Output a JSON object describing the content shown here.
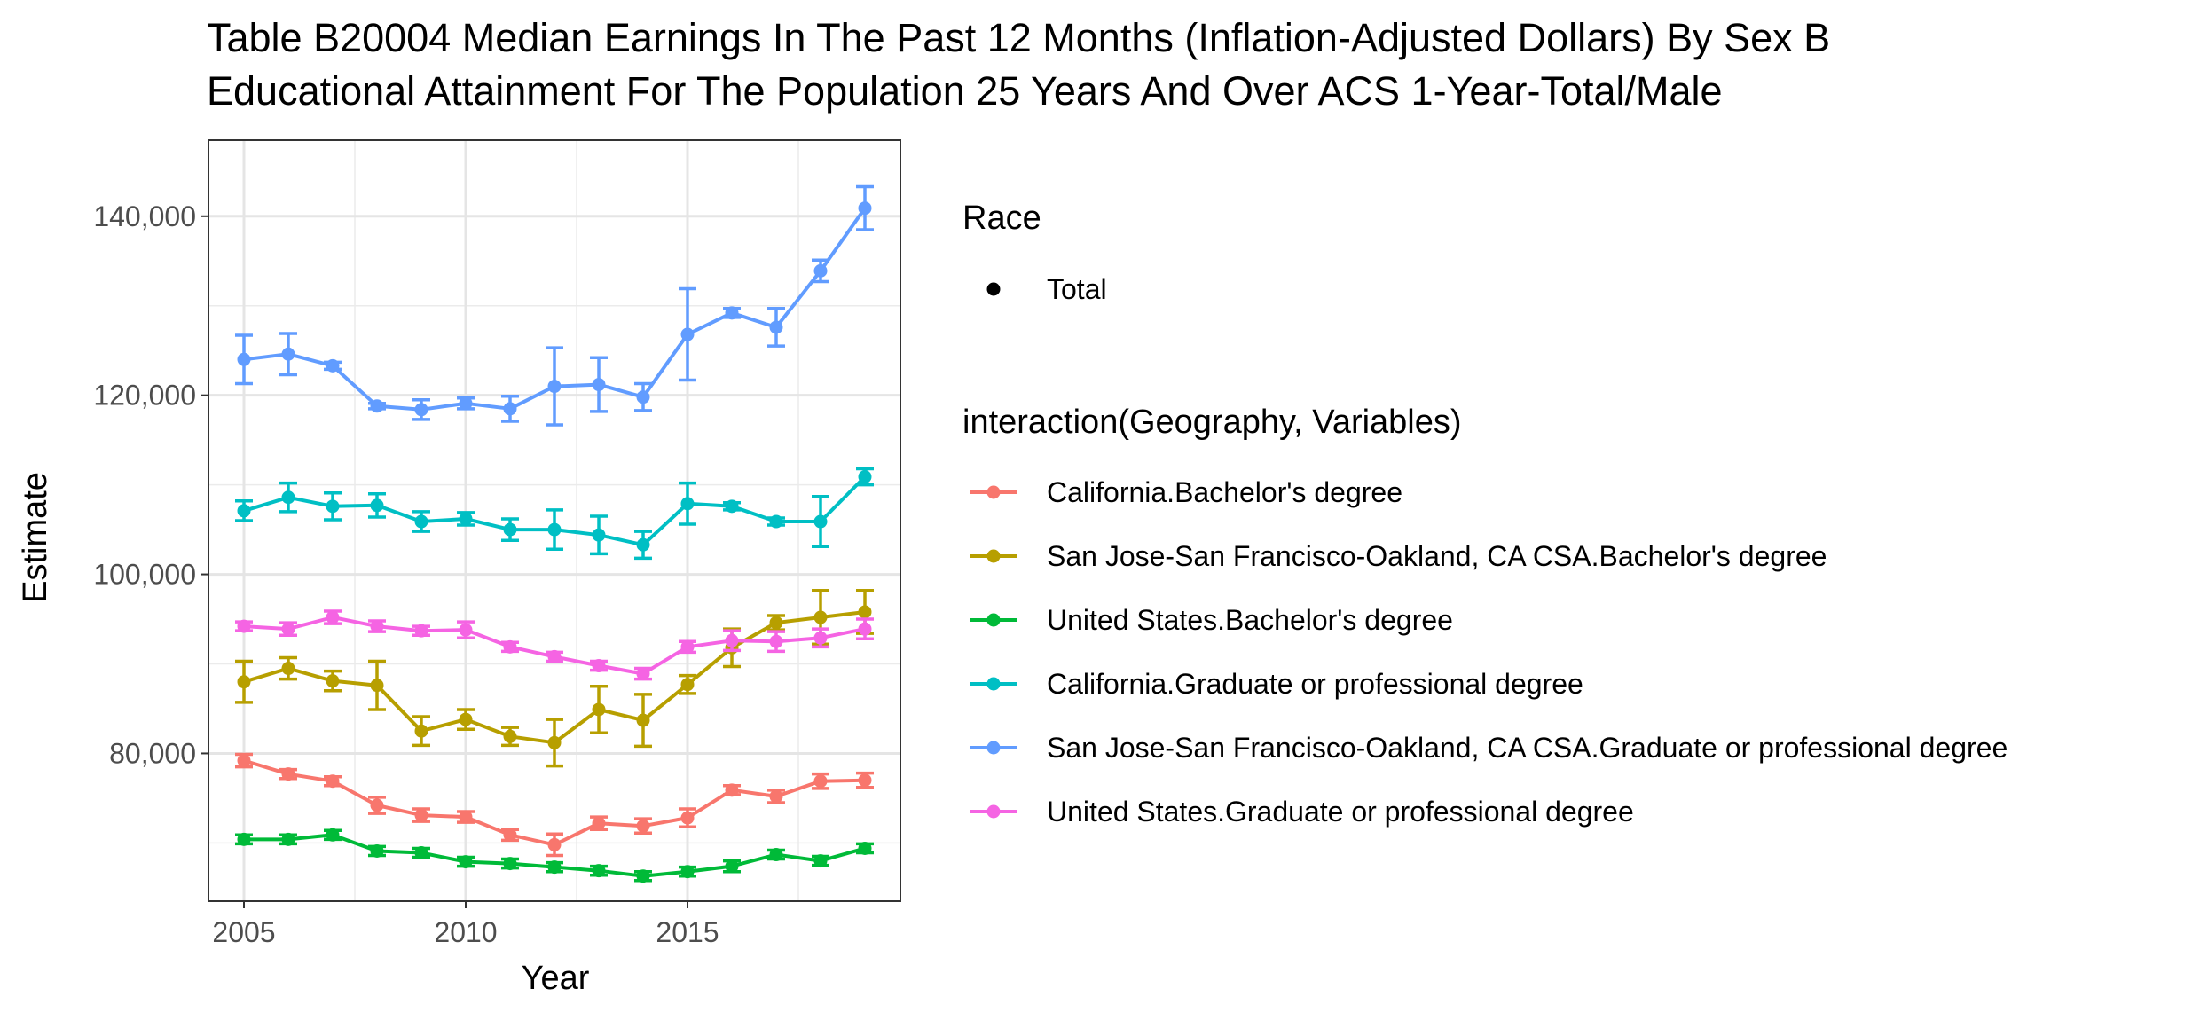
{
  "chart_data": {
    "type": "line",
    "title_line1": "Table B20004 Median Earnings In The Past 12 Months (Inflation-Adjusted Dollars) By Sex B",
    "title_line2": "Educational Attainment For The Population 25 Years And Over ACS 1-Year-Total/Male",
    "xlabel": "Year",
    "ylabel": "Estimate",
    "xlim": [
      2004.2,
      2019.8
    ],
    "ylim": [
      63500,
      148500
    ],
    "x_ticks": [
      2005,
      2010,
      2015
    ],
    "y_ticks": [
      80000,
      100000,
      120000,
      140000
    ],
    "y_tick_labels": [
      "80,000",
      "100,000",
      "120,000",
      "140,000"
    ],
    "grid": true,
    "legend_position": "right",
    "shape_legend": {
      "title": "Race",
      "items": [
        "Total"
      ]
    },
    "color_legend_title": "interaction(Geography, Variables)",
    "x": [
      2005,
      2006,
      2007,
      2008,
      2009,
      2010,
      2011,
      2012,
      2013,
      2014,
      2015,
      2016,
      2017,
      2018,
      2019
    ],
    "series": [
      {
        "name": "California.Bachelor's degree",
        "color": "#F8766D",
        "values": [
          79200,
          77700,
          76900,
          74200,
          73100,
          72900,
          70900,
          69800,
          72200,
          71900,
          72800,
          75900,
          75200,
          76900,
          77000
        ],
        "lower": [
          78500,
          77200,
          76400,
          73300,
          72400,
          72300,
          70300,
          68600,
          71500,
          71100,
          71800,
          75400,
          74500,
          76100,
          76200
        ],
        "upper": [
          79900,
          78200,
          77400,
          75100,
          73800,
          73500,
          71500,
          71000,
          72900,
          72700,
          73800,
          76400,
          75900,
          77700,
          77800
        ]
      },
      {
        "name": "San Jose-San Francisco-Oakland, CA CSA.Bachelor's degree",
        "color": "#B79F00",
        "values": [
          88000,
          89500,
          88100,
          87600,
          82500,
          83800,
          81900,
          81200,
          84900,
          83700,
          87700,
          91800,
          94600,
          95200,
          95800
        ],
        "lower": [
          85700,
          88300,
          87000,
          84900,
          80900,
          82700,
          80900,
          78600,
          82300,
          80800,
          86700,
          89700,
          93800,
          92200,
          93400
        ],
        "upper": [
          90300,
          90700,
          89200,
          90300,
          84100,
          84900,
          82900,
          83800,
          87500,
          86600,
          88700,
          93900,
          95400,
          98200,
          98200
        ]
      },
      {
        "name": "United States.Bachelor's degree",
        "color": "#00BA38",
        "values": [
          70400,
          70400,
          70900,
          69100,
          68900,
          67900,
          67700,
          67300,
          66900,
          66300,
          66800,
          67400,
          68700,
          68000,
          69400
        ],
        "lower": [
          69900,
          69900,
          70400,
          68600,
          68400,
          67400,
          67200,
          66800,
          66400,
          65800,
          66300,
          66800,
          68200,
          67500,
          68900
        ],
        "upper": [
          70900,
          70900,
          71400,
          69600,
          69400,
          68400,
          68200,
          67800,
          67400,
          66800,
          67300,
          68000,
          69200,
          68500,
          69900
        ]
      },
      {
        "name": "California.Graduate or professional degree",
        "color": "#00BFC4",
        "values": [
          107100,
          108600,
          107600,
          107700,
          105900,
          106200,
          105000,
          105000,
          104400,
          103300,
          107900,
          107600,
          105900,
          105900,
          110900
        ],
        "lower": [
          106000,
          107000,
          106100,
          106400,
          104800,
          105500,
          103800,
          102800,
          102300,
          101800,
          105600,
          107200,
          105500,
          103100,
          110000
        ],
        "upper": [
          108200,
          110200,
          109100,
          109000,
          107000,
          106900,
          106200,
          107200,
          106500,
          104800,
          110200,
          108000,
          106300,
          108700,
          111800
        ]
      },
      {
        "name": "San Jose-San Francisco-Oakland, CA CSA.Graduate or professional degree",
        "color": "#619CFF",
        "values": [
          124000,
          124600,
          123300,
          118800,
          118400,
          119100,
          118500,
          121000,
          121200,
          119800,
          126800,
          129200,
          127600,
          133900,
          140900
        ],
        "lower": [
          121300,
          122300,
          122900,
          118500,
          117300,
          118500,
          117100,
          116700,
          118200,
          118300,
          121700,
          128700,
          125500,
          132700,
          138500
        ],
        "upper": [
          126700,
          126900,
          123700,
          119100,
          119500,
          119700,
          119900,
          125300,
          124200,
          121300,
          131900,
          129700,
          129700,
          135100,
          143300
        ]
      },
      {
        "name": "United States.Graduate or professional degree",
        "color": "#F564E3",
        "values": [
          94200,
          93900,
          95200,
          94200,
          93700,
          93800,
          91900,
          90800,
          89800,
          88900,
          91900,
          92600,
          92500,
          92900,
          93900
        ],
        "lower": [
          93700,
          93200,
          94500,
          93600,
          93200,
          92900,
          91400,
          90300,
          89300,
          88300,
          91300,
          91500,
          91400,
          91900,
          92800
        ],
        "upper": [
          94700,
          94600,
          95900,
          94800,
          94200,
          94700,
          92400,
          91300,
          90300,
          89500,
          92500,
          93700,
          93600,
          93900,
          95000
        ]
      }
    ]
  }
}
